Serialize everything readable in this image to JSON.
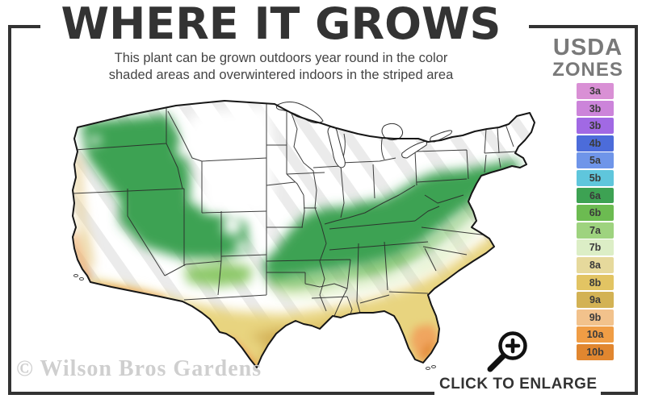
{
  "header": {
    "title": "WHERE IT GROWS",
    "subtitle_line1": "This plant can be grown outdoors year round in the color",
    "subtitle_line2": "shaded areas and overwintered indoors in the striped area"
  },
  "legend": {
    "heading_line1": "USDA",
    "heading_line2": "ZONES",
    "zones": [
      {
        "label": "3a",
        "color": "#d990d5"
      },
      {
        "label": "3b",
        "color": "#cc84da"
      },
      {
        "label": "3b",
        "color": "#a169e4"
      },
      {
        "label": "4b",
        "color": "#4c6cda"
      },
      {
        "label": "5a",
        "color": "#6f95e9"
      },
      {
        "label": "5b",
        "color": "#5fc6dc"
      },
      {
        "label": "6a",
        "color": "#3da253"
      },
      {
        "label": "6b",
        "color": "#6cbb51"
      },
      {
        "label": "7a",
        "color": "#9ed37f"
      },
      {
        "label": "7b",
        "color": "#dceec6"
      },
      {
        "label": "8a",
        "color": "#e6d99c"
      },
      {
        "label": "8b",
        "color": "#e2c463"
      },
      {
        "label": "9a",
        "color": "#d3b254"
      },
      {
        "label": "9b",
        "color": "#f2c28c"
      },
      {
        "label": "10a",
        "color": "#f09d45"
      },
      {
        "label": "10b",
        "color": "#e1862f"
      }
    ]
  },
  "footer": {
    "watermark": "© Wilson Bros Gardens",
    "enlarge_label": "CLICK TO ENLARGE"
  }
}
